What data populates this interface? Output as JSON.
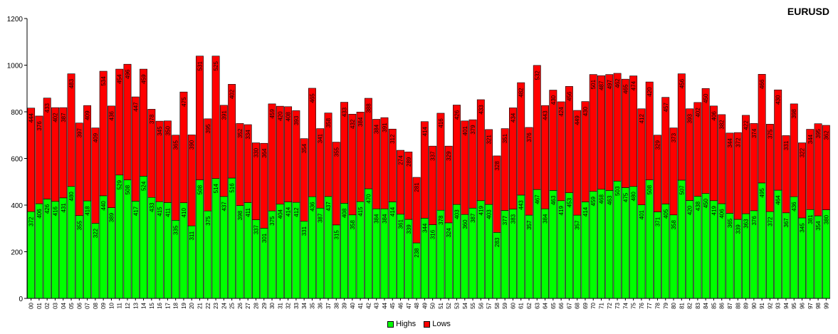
{
  "chart_data": {
    "type": "bar",
    "stacked": true,
    "title": "EURUSD",
    "xlabel": "",
    "ylabel": "",
    "ylim": [
      0,
      1200
    ],
    "yticks": [
      0,
      200,
      400,
      600,
      800,
      1000,
      1200
    ],
    "grid": false,
    "legend_placement": "bottom-center",
    "categories": [
      "00",
      "01",
      "02",
      "03",
      "04",
      "05",
      "06",
      "07",
      "08",
      "09",
      "10",
      "11",
      "12",
      "13",
      "14",
      "15",
      "16",
      "17",
      "18",
      "19",
      "20",
      "21",
      "22",
      "23",
      "24",
      "25",
      "26",
      "27",
      "28",
      "29",
      "30",
      "31",
      "32",
      "33",
      "34",
      "35",
      "36",
      "37",
      "38",
      "39",
      "40",
      "41",
      "42",
      "43",
      "44",
      "45",
      "46",
      "47",
      "48",
      "49",
      "50",
      "51",
      "52",
      "53",
      "54",
      "55",
      "56",
      "57",
      "58",
      "59",
      "60",
      "61",
      "62",
      "63",
      "64",
      "65",
      "66",
      "67",
      "68",
      "69",
      "70",
      "71",
      "72",
      "73",
      "74",
      "75",
      "76",
      "77",
      "78",
      "79",
      "80",
      "81",
      "82",
      "83",
      "84",
      "85",
      "86",
      "87",
      "88",
      "89",
      "90",
      "91",
      "92",
      "93",
      "94",
      "95",
      "96",
      "97",
      "98",
      "99"
    ],
    "series": [
      {
        "name": "Highs",
        "color": "#00ff00",
        "values": [
          372,
          406,
          426,
          416,
          431,
          480,
          355,
          418,
          322,
          440,
          389,
          529,
          508,
          417,
          524,
          433,
          415,
          411,
          335,
          410,
          311,
          508,
          375,
          514,
          437,
          516,
          398,
          411,
          337,
          301,
          375,
          404,
          414,
          412,
          331,
          436,
          387,
          437,
          315,
          408,
          358,
          415,
          470,
          384,
          384,
          414,
          361,
          339,
          238,
          344,
          316,
          378,
          324,
          403,
          360,
          387,
          419,
          403,
          283,
          377,
          383,
          443,
          357,
          467,
          384,
          463,
          419,
          453,
          357,
          414,
          459,
          468,
          463,
          503,
          475,
          480,
          401,
          508,
          371,
          405,
          358,
          507,
          420,
          438,
          450,
          419,
          406,
          365,
          339,
          363,
          376,
          495,
          372,
          464,
          367,
          436,
          345,
          381,
          354,
          380
        ]
      },
      {
        "name": "Lows",
        "color": "#ff0000",
        "values": [
          444,
          376,
          433,
          402,
          387,
          483,
          397,
          409,
          409,
          534,
          436,
          454,
          496,
          447,
          459,
          378,
          345,
          350,
          365,
          475,
          390,
          531,
          395,
          525,
          391,
          402,
          352,
          334,
          330,
          364,
          459,
          420,
          408,
          393,
          354,
          465,
          341,
          358,
          355,
          433,
          432,
          384,
          388,
          384,
          391,
          312,
          274,
          289,
          281,
          414,
          337,
          416,
          329,
          426,
          401,
          379,
          433,
          321,
          328,
          351,
          434,
          482,
          376,
          532,
          443,
          430,
          424,
          456,
          449,
          430,
          501,
          487,
          497,
          462,
          465,
          474,
          412,
          420,
          329,
          457,
          373,
          456,
          393,
          402,
          450,
          406,
          382,
          344,
          372,
          422,
          374,
          466,
          375,
          430,
          331,
          398,
          322,
          344,
          395,
          362
        ]
      }
    ]
  }
}
